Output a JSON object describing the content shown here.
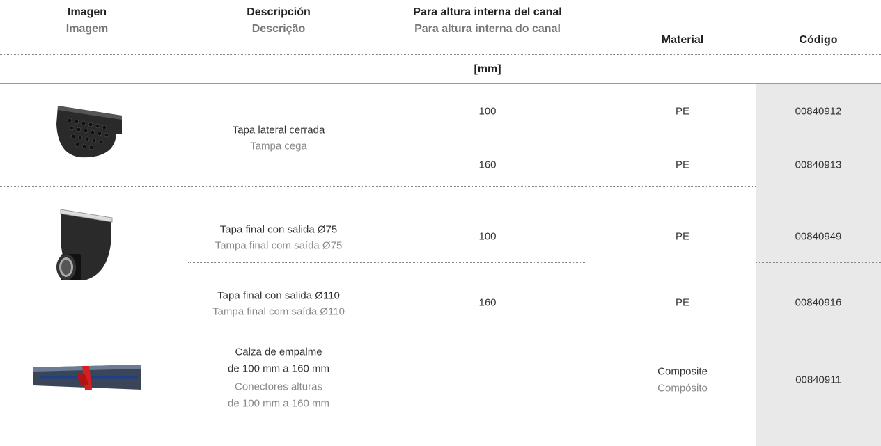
{
  "header": {
    "columns": [
      {
        "es": "Imagen",
        "pt": "Imagem"
      },
      {
        "es": "Descripción",
        "pt": "Descrição"
      },
      {
        "es": "Para altura interna del canal",
        "pt": "Para altura interna do canal"
      },
      {
        "es": "Material"
      },
      {
        "es": "Código"
      }
    ],
    "unit": "[mm]"
  },
  "table": {
    "groups": [
      {
        "description": {
          "es": "Tapa lateral cerrada",
          "pt": "Tampa cega"
        },
        "items": [
          {
            "height": 100,
            "material": "PE",
            "code": "00840912"
          },
          {
            "height": 160,
            "material": "PE",
            "code": "00840913"
          }
        ]
      },
      {
        "items": [
          {
            "description": {
              "es": "Tapa final con salida Ø75",
              "pt": "Tampa final com saída Ø75"
            },
            "height": 100,
            "material": "PE",
            "code": "00840949"
          },
          {
            "description": {
              "es": "Tapa final con salida Ø110",
              "pt": "Tampa final com saída Ø110"
            },
            "height": 160,
            "material": "PE",
            "code": "00840916"
          }
        ]
      },
      {
        "description": {
          "es": [
            "Calza de empalme",
            "de 100 mm a 160 mm"
          ],
          "pt": [
            "Conectores alturas",
            "de 100 mm a 160 mm"
          ]
        },
        "material": {
          "es": "Composite",
          "pt": "Compósito"
        },
        "code": "00840911"
      }
    ]
  }
}
